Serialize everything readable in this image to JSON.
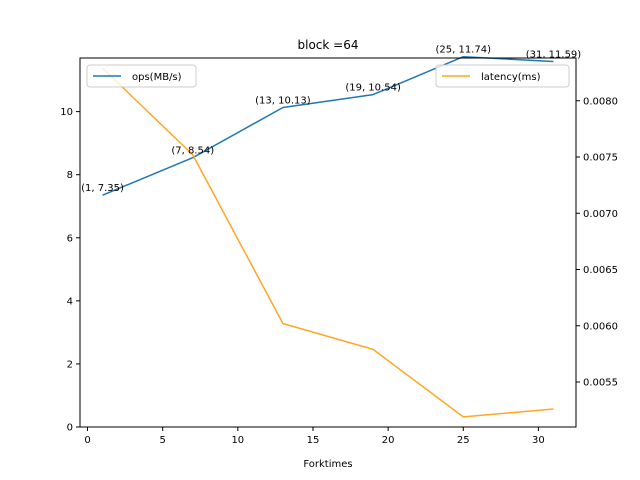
{
  "chart_data": {
    "type": "line",
    "title": "block =64",
    "xlabel": "Forktimes",
    "ylabel": "",
    "y2label": "",
    "x": [
      1,
      7,
      13,
      19,
      25,
      31
    ],
    "xlim": [
      -0.5,
      32.5
    ],
    "xticks": [
      0,
      5,
      10,
      15,
      20,
      25,
      30
    ],
    "ylim": [
      0,
      11.7
    ],
    "yticks": [
      0,
      2,
      4,
      6,
      8,
      10
    ],
    "y2lim": [
      0.0051,
      0.00838
    ],
    "y2ticks": [
      0.0055,
      0.006,
      0.0065,
      0.007,
      0.0075,
      0.008
    ],
    "grid": false,
    "series": [
      {
        "name": "ops(MB/s)",
        "axis": "left",
        "color": "#1f77b4",
        "values": [
          7.35,
          8.54,
          10.13,
          10.54,
          11.74,
          11.59
        ],
        "labels": [
          "(1, 7.35)",
          "(7, 8.54)",
          "(13, 10.13)",
          "(19, 10.54)",
          "(25, 11.74)",
          "(31, 11.59)"
        ],
        "legend_position": "upper-left"
      },
      {
        "name": "latency(ms)",
        "axis": "right",
        "color": "#ffa726",
        "values": [
          0.00829,
          0.00752,
          0.00602,
          0.00579,
          0.00519,
          0.00526
        ],
        "legend_position": "upper-right"
      }
    ]
  }
}
